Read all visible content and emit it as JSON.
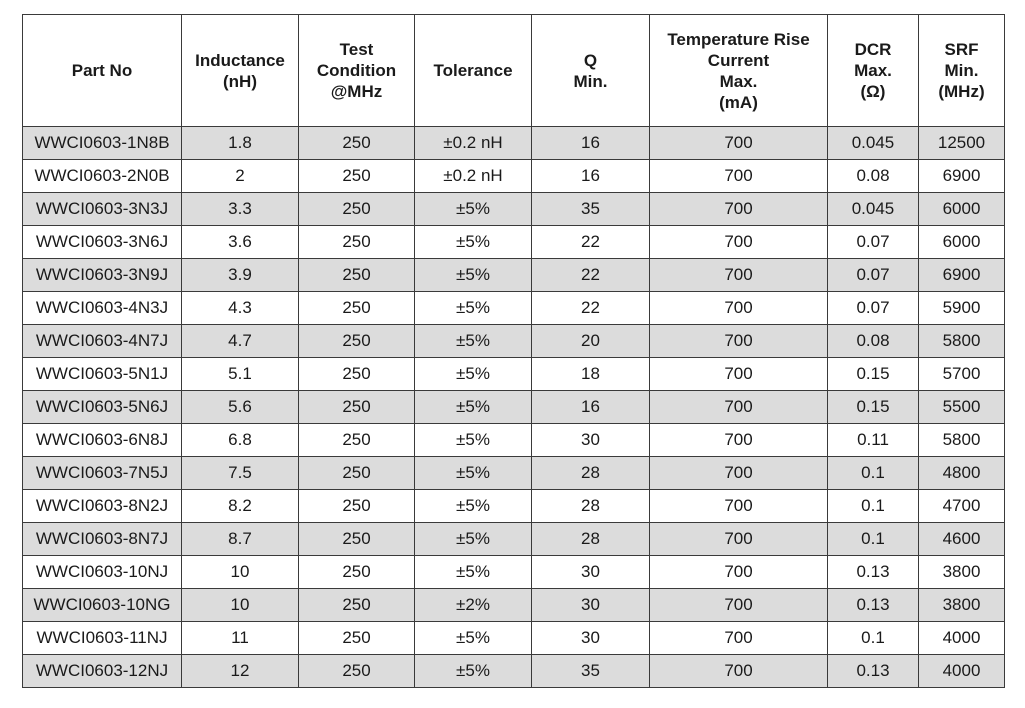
{
  "columns": [
    {
      "lines": [
        "Part No"
      ]
    },
    {
      "lines": [
        "Inductance",
        "(nH)"
      ]
    },
    {
      "lines": [
        "Test",
        "Condition",
        "@MHz"
      ]
    },
    {
      "lines": [
        "Tolerance"
      ]
    },
    {
      "lines": [
        "Q",
        "Min."
      ]
    },
    {
      "lines": [
        "Temperature Rise",
        "Current",
        "Max.",
        "(mA)"
      ]
    },
    {
      "lines": [
        "DCR",
        "Max.",
        "(Ω)"
      ]
    },
    {
      "lines": [
        "SRF",
        "Min.",
        "(MHz)"
      ]
    }
  ],
  "rows": [
    [
      "WWCI0603-1N8B",
      "1.8",
      "250",
      "±0.2 nH",
      "16",
      "700",
      "0.045",
      "12500"
    ],
    [
      "WWCI0603-2N0B",
      "2",
      "250",
      "±0.2 nH",
      "16",
      "700",
      "0.08",
      "6900"
    ],
    [
      "WWCI0603-3N3J",
      "3.3",
      "250",
      "±5%",
      "35",
      "700",
      "0.045",
      "6000"
    ],
    [
      "WWCI0603-3N6J",
      "3.6",
      "250",
      "±5%",
      "22",
      "700",
      "0.07",
      "6000"
    ],
    [
      "WWCI0603-3N9J",
      "3.9",
      "250",
      "±5%",
      "22",
      "700",
      "0.07",
      "6900"
    ],
    [
      "WWCI0603-4N3J",
      "4.3",
      "250",
      "±5%",
      "22",
      "700",
      "0.07",
      "5900"
    ],
    [
      "WWCI0603-4N7J",
      "4.7",
      "250",
      "±5%",
      "20",
      "700",
      "0.08",
      "5800"
    ],
    [
      "WWCI0603-5N1J",
      "5.1",
      "250",
      "±5%",
      "18",
      "700",
      "0.15",
      "5700"
    ],
    [
      "WWCI0603-5N6J",
      "5.6",
      "250",
      "±5%",
      "16",
      "700",
      "0.15",
      "5500"
    ],
    [
      "WWCI0603-6N8J",
      "6.8",
      "250",
      "±5%",
      "30",
      "700",
      "0.11",
      "5800"
    ],
    [
      "WWCI0603-7N5J",
      "7.5",
      "250",
      "±5%",
      "28",
      "700",
      "0.1",
      "4800"
    ],
    [
      "WWCI0603-8N2J",
      "8.2",
      "250",
      "±5%",
      "28",
      "700",
      "0.1",
      "4700"
    ],
    [
      "WWCI0603-8N7J",
      "8.7",
      "250",
      "±5%",
      "28",
      "700",
      "0.1",
      "4600"
    ],
    [
      "WWCI0603-10NJ",
      "10",
      "250",
      "±5%",
      "30",
      "700",
      "0.13",
      "3800"
    ],
    [
      "WWCI0603-10NG",
      "10",
      "250",
      "±2%",
      "30",
      "700",
      "0.13",
      "3800"
    ],
    [
      "WWCI0603-11NJ",
      "11",
      "250",
      "±5%",
      "30",
      "700",
      "0.1",
      "4000"
    ],
    [
      "WWCI0603-12NJ",
      "12",
      "250",
      "±5%",
      "35",
      "700",
      "0.13",
      "4000"
    ]
  ]
}
